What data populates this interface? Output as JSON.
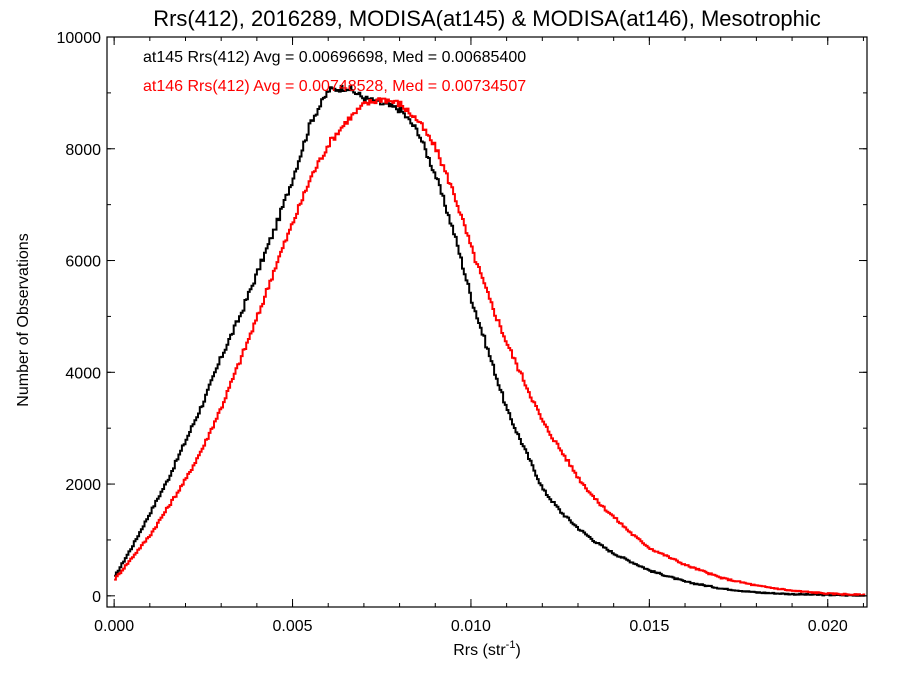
{
  "chart_data": {
    "type": "line",
    "title": "Rrs(412), 2016289, MODISA(at145) & MODISA(at146), Mesotrophic",
    "xlabel": "Rrs (str",
    "xlabel_sup": "-1",
    "xlabel_close": ")",
    "ylabel": "Number of Observations",
    "xlim": [
      -0.0002,
      0.0211
    ],
    "ylim": [
      -200,
      10000
    ],
    "x_ticks": [
      0.0,
      0.005,
      0.01,
      0.015,
      0.02
    ],
    "x_tick_labels": [
      "0.000",
      "0.005",
      "0.010",
      "0.015",
      "0.020"
    ],
    "x_minor_step": 0.001,
    "y_ticks": [
      0,
      2000,
      4000,
      6000,
      8000,
      10000
    ],
    "y_tick_labels": [
      "0",
      "2000",
      "4000",
      "6000",
      "8000",
      "10000"
    ],
    "y_minor_step": 1000,
    "grid": false,
    "legend_position": "top-left",
    "series": [
      {
        "name": "at145",
        "color": "#000000",
        "label": "at145 Rrs(412) Avg = 0.00696698, Med = 0.00685400",
        "x": [
          0.0,
          0.0005,
          0.001,
          0.0015,
          0.002,
          0.0025,
          0.003,
          0.0035,
          0.004,
          0.0045,
          0.005,
          0.0055,
          0.006,
          0.0065,
          0.007,
          0.0075,
          0.008,
          0.0085,
          0.009,
          0.0095,
          0.01,
          0.0105,
          0.011,
          0.0115,
          0.012,
          0.0125,
          0.013,
          0.0135,
          0.014,
          0.0145,
          0.015,
          0.016,
          0.017,
          0.018,
          0.019,
          0.02,
          0.021
        ],
        "y": [
          350,
          900,
          1500,
          2100,
          2800,
          3500,
          4300,
          5000,
          5800,
          6600,
          7500,
          8500,
          9050,
          9100,
          8900,
          8800,
          8700,
          8300,
          7500,
          6500,
          5300,
          4300,
          3300,
          2600,
          1900,
          1500,
          1200,
          950,
          750,
          600,
          450,
          250,
          130,
          60,
          30,
          15,
          5
        ]
      },
      {
        "name": "at146",
        "color": "#ff0000",
        "label": "at146 Rrs(412) Avg = 0.00748528, Med = 0.00734507",
        "x": [
          0.0,
          0.0005,
          0.001,
          0.0015,
          0.002,
          0.0025,
          0.003,
          0.0035,
          0.004,
          0.0045,
          0.005,
          0.0055,
          0.006,
          0.0065,
          0.007,
          0.0075,
          0.008,
          0.0085,
          0.009,
          0.0095,
          0.01,
          0.0105,
          0.011,
          0.0115,
          0.012,
          0.0125,
          0.013,
          0.0135,
          0.014,
          0.0145,
          0.015,
          0.016,
          0.017,
          0.018,
          0.019,
          0.02,
          0.021
        ],
        "y": [
          300,
          700,
          1100,
          1600,
          2100,
          2700,
          3400,
          4200,
          5000,
          5900,
          6700,
          7500,
          8100,
          8500,
          8800,
          8900,
          8800,
          8500,
          8000,
          7200,
          6200,
          5300,
          4500,
          3800,
          3100,
          2600,
          2100,
          1700,
          1400,
          1100,
          850,
          550,
          320,
          180,
          90,
          40,
          15
        ]
      }
    ]
  }
}
